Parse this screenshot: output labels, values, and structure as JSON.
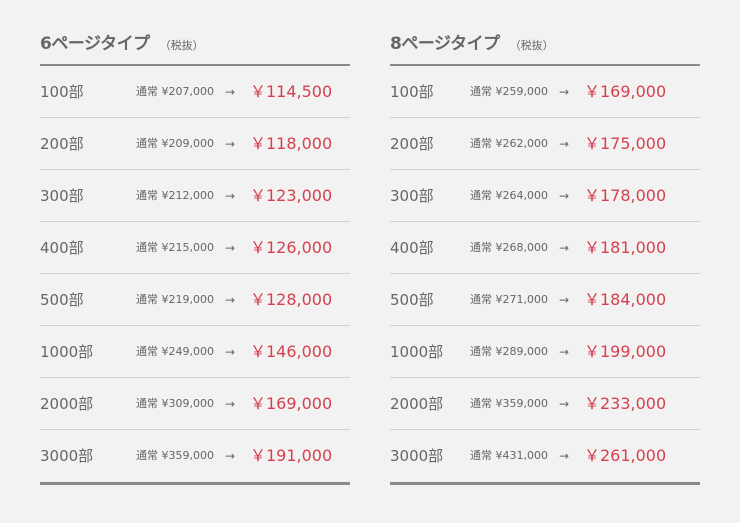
{
  "accent_color": "#d6404e",
  "tables": [
    {
      "title": "6ページタイプ",
      "note": "（税抜）",
      "rows": [
        {
          "qty": "100部",
          "normal": "通常 ¥207,000",
          "arrow": "→",
          "sale": "￥114,500"
        },
        {
          "qty": "200部",
          "normal": "通常 ¥209,000",
          "arrow": "→",
          "sale": "￥118,000"
        },
        {
          "qty": "300部",
          "normal": "通常 ¥212,000",
          "arrow": "→",
          "sale": "￥123,000"
        },
        {
          "qty": "400部",
          "normal": "通常 ¥215,000",
          "arrow": "→",
          "sale": "￥126,000"
        },
        {
          "qty": "500部",
          "normal": "通常 ¥219,000",
          "arrow": "→",
          "sale": "￥128,000"
        },
        {
          "qty": "1000部",
          "normal": "通常 ¥249,000",
          "arrow": "→",
          "sale": "￥146,000"
        },
        {
          "qty": "2000部",
          "normal": "通常 ¥309,000",
          "arrow": "→",
          "sale": "￥169,000"
        },
        {
          "qty": "3000部",
          "normal": "通常 ¥359,000",
          "arrow": "→",
          "sale": "￥191,000"
        }
      ]
    },
    {
      "title": "8ページタイプ",
      "note": "（税抜）",
      "rows": [
        {
          "qty": "100部",
          "normal": "通常 ¥259,000",
          "arrow": "→",
          "sale": "￥169,000"
        },
        {
          "qty": "200部",
          "normal": "通常 ¥262,000",
          "arrow": "→",
          "sale": "￥175,000"
        },
        {
          "qty": "300部",
          "normal": "通常 ¥264,000",
          "arrow": "→",
          "sale": "￥178,000"
        },
        {
          "qty": "400部",
          "normal": "通常 ¥268,000",
          "arrow": "→",
          "sale": "￥181,000"
        },
        {
          "qty": "500部",
          "normal": "通常 ¥271,000",
          "arrow": "→",
          "sale": "￥184,000"
        },
        {
          "qty": "1000部",
          "normal": "通常 ¥289,000",
          "arrow": "→",
          "sale": "￥199,000"
        },
        {
          "qty": "2000部",
          "normal": "通常 ¥359,000",
          "arrow": "→",
          "sale": "￥233,000"
        },
        {
          "qty": "3000部",
          "normal": "通常 ¥431,000",
          "arrow": "→",
          "sale": "￥261,000"
        }
      ]
    }
  ]
}
